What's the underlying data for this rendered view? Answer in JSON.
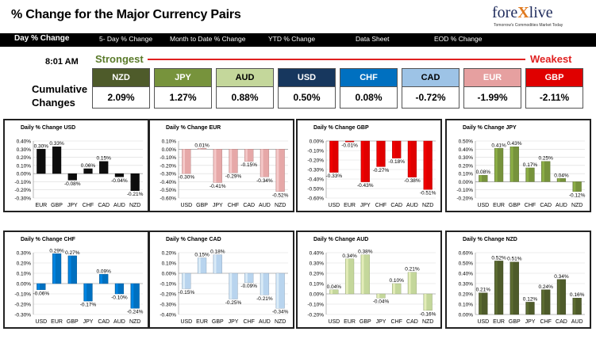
{
  "header": {
    "title": "% Change for the Major Currency Pairs",
    "logo": {
      "pre": "fore",
      "x": "X",
      "post": "live",
      "tagline": "Tomorrow's Commodities Market Today"
    }
  },
  "nav": [
    "Day % Change",
    "5- Day % Change",
    "Month to Date % Change",
    "YTD % Change",
    "Data Sheet",
    "EOD % Change"
  ],
  "summary": {
    "time": "8:01 AM",
    "strongest": "Strongest",
    "weakest": "Weakest",
    "label_line1": "Cumulative",
    "label_line2": "Changes",
    "currencies": [
      {
        "code": "NZD",
        "value": "2.09%",
        "color": "#4e5b2a",
        "text": "#ffffff"
      },
      {
        "code": "JPY",
        "value": "1.27%",
        "color": "#77933c",
        "text": "#ffffff"
      },
      {
        "code": "AUD",
        "value": "0.88%",
        "color": "#c4d79b",
        "text": "#000000"
      },
      {
        "code": "USD",
        "value": "0.50%",
        "color": "#17375e",
        "text": "#ffffff"
      },
      {
        "code": "CHF",
        "value": "0.08%",
        "color": "#0070c0",
        "text": "#ffffff"
      },
      {
        "code": "CAD",
        "value": "-0.72%",
        "color": "#9dc3e6",
        "text": "#000000"
      },
      {
        "code": "EUR",
        "value": "-1.99%",
        "color": "#e6a0a0",
        "text": "#ffffff"
      },
      {
        "code": "GBP",
        "value": "-2.11%",
        "color": "#e00000",
        "text": "#ffffff"
      }
    ]
  },
  "chart_data": [
    {
      "type": "bar",
      "title": "Daily % Change USD",
      "categories": [
        "EUR",
        "GBP",
        "JPY",
        "CHF",
        "CAD",
        "AUD",
        "NZD"
      ],
      "values": [
        0.3,
        0.33,
        -0.08,
        0.06,
        0.15,
        -0.04,
        -0.21
      ],
      "labels": [
        "0.30%",
        "0.33%",
        "-0.08%",
        "0.06%",
        "0.15%",
        "-0.04%",
        "-0.21%"
      ],
      "ylim": [
        -0.3,
        0.4
      ],
      "step": 0.1,
      "color": "#0d0d0d"
    },
    {
      "type": "bar",
      "title": "Daily % Change EUR",
      "categories": [
        "USD",
        "GBP",
        "JPY",
        "CHF",
        "CAD",
        "AUD",
        "NZD"
      ],
      "values": [
        -0.3,
        0.01,
        -0.41,
        -0.29,
        -0.15,
        -0.34,
        -0.52
      ],
      "labels": [
        "-0.30%",
        "0.01%",
        "-0.41%",
        "-0.29%",
        "-0.15%",
        "-0.34%",
        "-0.52%"
      ],
      "ylim": [
        -0.6,
        0.1
      ],
      "step": 0.1,
      "color": "#e6a8a8"
    },
    {
      "type": "bar",
      "title": "Daily % Change GBP",
      "categories": [
        "USD",
        "EUR",
        "JPY",
        "CHF",
        "CAD",
        "AUD",
        "NZD"
      ],
      "values": [
        -0.33,
        -0.01,
        -0.43,
        -0.27,
        -0.18,
        -0.38,
        -0.51
      ],
      "labels": [
        "-0.33%",
        "-0.01%",
        "-0.43%",
        "-0.27%",
        "-0.18%",
        "-0.38%",
        "-0.51%"
      ],
      "ylim": [
        -0.6,
        0.0
      ],
      "step": 0.1,
      "color": "#e00000"
    },
    {
      "type": "bar",
      "title": "Daily % Change JPY",
      "categories": [
        "USD",
        "EUR",
        "GBP",
        "CHF",
        "CAD",
        "AUD",
        "NZD"
      ],
      "values": [
        0.08,
        0.41,
        0.43,
        0.17,
        0.25,
        0.04,
        -0.12
      ],
      "labels": [
        "0.08%",
        "0.41%",
        "0.43%",
        "0.17%",
        "0.25%",
        "0.04%",
        "-0.12%"
      ],
      "ylim": [
        -0.2,
        0.5
      ],
      "step": 0.1,
      "color": "#77933c"
    },
    {
      "type": "bar",
      "title": "Daily % Change CHF",
      "categories": [
        "USD",
        "EUR",
        "GBP",
        "JPY",
        "CAD",
        "AUD",
        "NZD"
      ],
      "values": [
        -0.06,
        0.29,
        0.27,
        -0.17,
        0.09,
        -0.1,
        -0.24
      ],
      "labels": [
        "-0.06%",
        "0.29%",
        "0.27%",
        "-0.17%",
        "0.09%",
        "-0.10%",
        "-0.24%"
      ],
      "ylim": [
        -0.3,
        0.3
      ],
      "step": 0.1,
      "color": "#0070c0"
    },
    {
      "type": "bar",
      "title": "Daily % Change CAD",
      "categories": [
        "USD",
        "EUR",
        "GBP",
        "JPY",
        "CHF",
        "AUD",
        "NZD"
      ],
      "values": [
        -0.15,
        0.15,
        0.18,
        -0.25,
        -0.09,
        -0.21,
        -0.34
      ],
      "labels": [
        "-0.15%",
        "0.15%",
        "0.18%",
        "-0.25%",
        "-0.09%",
        "-0.21%",
        "-0.34%"
      ],
      "ylim": [
        -0.4,
        0.2
      ],
      "step": 0.1,
      "color": "#b8d4ee"
    },
    {
      "type": "bar",
      "title": "Daily % Change AUD",
      "categories": [
        "USD",
        "EUR",
        "GBP",
        "JPY",
        "CHF",
        "CAD",
        "NZD"
      ],
      "values": [
        0.04,
        0.34,
        0.38,
        -0.04,
        0.1,
        0.21,
        -0.16
      ],
      "labels": [
        "0.04%",
        "0.34%",
        "0.38%",
        "-0.04%",
        "0.10%",
        "0.21%",
        "-0.16%"
      ],
      "ylim": [
        -0.2,
        0.4
      ],
      "step": 0.1,
      "color": "#c4d79b"
    },
    {
      "type": "bar",
      "title": "Daily % Change NZD",
      "categories": [
        "USD",
        "EUR",
        "GBP",
        "JPY",
        "CHF",
        "CAD",
        "AUD"
      ],
      "values": [
        0.21,
        0.52,
        0.51,
        0.12,
        0.24,
        0.34,
        0.16
      ],
      "labels": [
        "0.21%",
        "0.52%",
        "0.51%",
        "0.12%",
        "0.24%",
        "0.34%",
        "0.16%"
      ],
      "ylim": [
        0.0,
        0.6
      ],
      "step": 0.1,
      "color": "#4e5b2a"
    }
  ]
}
